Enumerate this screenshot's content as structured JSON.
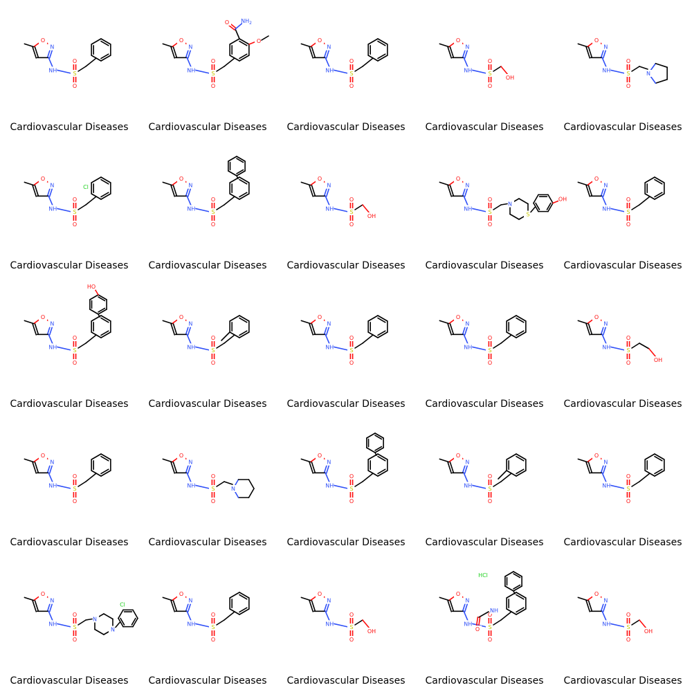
{
  "grid": {
    "columns": 5,
    "rows": 5,
    "cells": [
      {
        "caption": "Cardiovascular Diseases",
        "molecule": "benzyl",
        "salt": ""
      },
      {
        "caption": "Cardiovascular Diseases",
        "molecule": "carbamoyl-methoxy-benzyl",
        "salt": ""
      },
      {
        "caption": "Cardiovascular Diseases",
        "molecule": "benzyl",
        "salt": ""
      },
      {
        "caption": "Cardiovascular Diseases",
        "molecule": "hydroxymethyl",
        "salt": ""
      },
      {
        "caption": "Cardiovascular Diseases",
        "molecule": "pyrrolidinylmethyl",
        "salt": ""
      },
      {
        "caption": "Cardiovascular Diseases",
        "molecule": "chlorobenzyl",
        "salt": ""
      },
      {
        "caption": "Cardiovascular Diseases",
        "molecule": "benzhydryl",
        "salt": ""
      },
      {
        "caption": "Cardiovascular Diseases",
        "molecule": "hydroxymethyl",
        "salt": ""
      },
      {
        "caption": "Cardiovascular Diseases",
        "molecule": "hydroxyphenyl-thiazinane",
        "salt": ""
      },
      {
        "caption": "Cardiovascular Diseases",
        "molecule": "benzyl",
        "salt": ""
      },
      {
        "caption": "Cardiovascular Diseases",
        "molecule": "hydroxyphenyl-phenylethyl",
        "salt": ""
      },
      {
        "caption": "Cardiovascular Diseases",
        "molecule": "methylbenzyl",
        "salt": ""
      },
      {
        "caption": "Cardiovascular Diseases",
        "molecule": "benzyl",
        "salt": ""
      },
      {
        "caption": "Cardiovascular Diseases",
        "molecule": "benzyl",
        "salt": ""
      },
      {
        "caption": "Cardiovascular Diseases",
        "molecule": "hydroxyethyl",
        "salt": ""
      },
      {
        "caption": "Cardiovascular Diseases",
        "molecule": "benzyl",
        "salt": ""
      },
      {
        "caption": "Cardiovascular Diseases",
        "molecule": "piperidinylmethyl",
        "salt": ""
      },
      {
        "caption": "Cardiovascular Diseases",
        "molecule": "benzhydryl",
        "salt": ""
      },
      {
        "caption": "Cardiovascular Diseases",
        "molecule": "methylbenzyl",
        "salt": ""
      },
      {
        "caption": "Cardiovascular Diseases",
        "molecule": "benzyl",
        "salt": ""
      },
      {
        "caption": "Cardiovascular Diseases",
        "molecule": "chlorophenyl-piperazinylmethyl",
        "salt": ""
      },
      {
        "caption": "Cardiovascular Diseases",
        "molecule": "benzyl",
        "salt": ""
      },
      {
        "caption": "Cardiovascular Diseases",
        "molecule": "hydroxymethyl",
        "salt": ""
      },
      {
        "caption": "Cardiovascular Diseases",
        "molecule": "benzamido-benzyl",
        "salt": "HCl"
      },
      {
        "caption": "Cardiovascular Diseases",
        "molecule": "hydroxymethyl",
        "salt": ""
      }
    ]
  },
  "atom_labels": {
    "O": "O",
    "N": "N",
    "NH": "NH",
    "S": "S",
    "OH": "OH",
    "HO": "HO",
    "Cl": "Cl",
    "NH2": "NH",
    "NH2_sub": "2"
  },
  "colors": {
    "bond": "#000000",
    "oxygen": "#ff0d0d",
    "nitrogen": "#3050f8",
    "sulfur": "#c8c800",
    "chlorine": "#1fd01f"
  }
}
